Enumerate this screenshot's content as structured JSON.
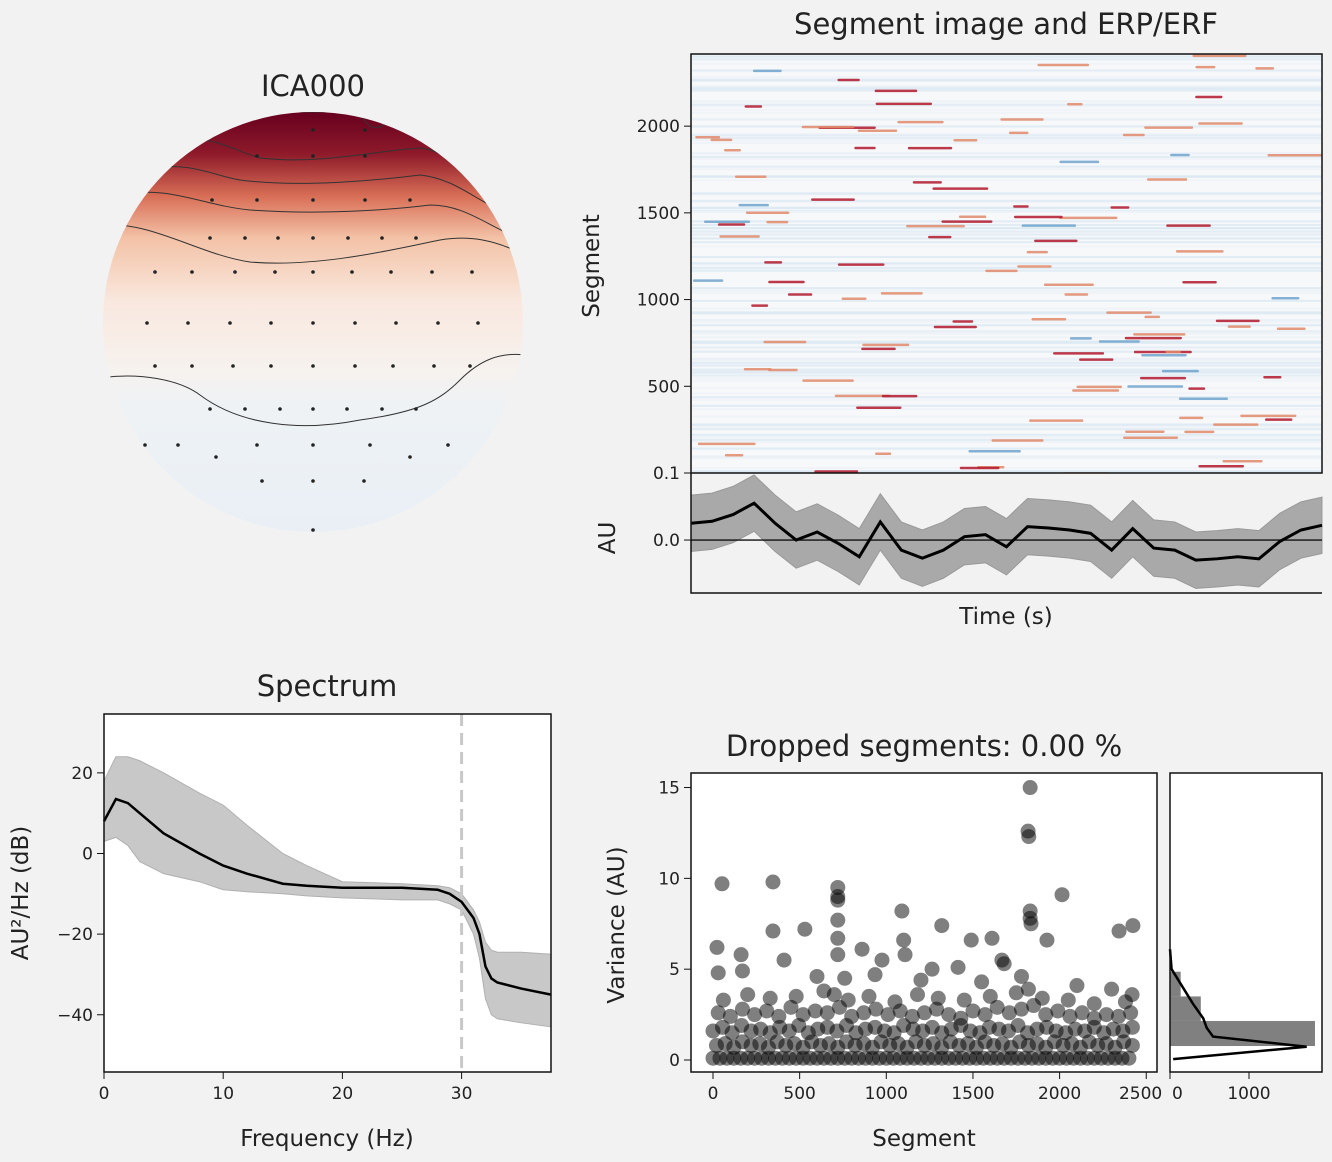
{
  "colors": {
    "background": "#f2f2f2",
    "topo_max": "#67001f",
    "topo_min": "#eef3f8",
    "band": "#a9a9a9",
    "spectrum_band": "#c8c8c8",
    "points": "#000000",
    "hist": "#808080"
  },
  "chart_data": [
    {
      "type": "heatmap",
      "id": "topomap",
      "title": "ICA000",
      "colormap": "RdBu_r",
      "contours": true,
      "sensors_shown": true
    },
    {
      "type": "heatmap",
      "id": "segment_image",
      "title": "Segment image and ERP/ERF",
      "ylabel": "Segment",
      "yticks": [
        "500",
        "1000",
        "1500",
        "2000"
      ],
      "ylim": [
        0,
        2416
      ],
      "colormap": "RdBu_r"
    },
    {
      "type": "line",
      "id": "erp",
      "xlabel": "Time (s)",
      "ylabel": "AU",
      "yticks": [
        "0.0",
        "0.1"
      ],
      "ylim": [
        -0.079,
        0.1
      ],
      "mean": [
        0.025,
        0.028,
        0.038,
        0.055,
        0.025,
        0.0,
        0.012,
        -0.005,
        -0.025,
        0.027,
        -0.015,
        -0.027,
        -0.015,
        0.005,
        0.008,
        -0.01,
        0.02,
        0.018,
        0.015,
        0.01,
        -0.015,
        0.017,
        -0.012,
        -0.015,
        -0.03,
        -0.028,
        -0.025,
        -0.028,
        -0.002,
        0.015,
        0.022
      ],
      "ci_halfwidth": 0.042,
      "hline": 0.0
    },
    {
      "type": "line",
      "id": "spectrum",
      "title": "Spectrum",
      "xlabel": "Frequency (Hz)",
      "ylabel": "AU²/Hz (dB)",
      "xticks": [
        "0",
        "10",
        "20",
        "30"
      ],
      "yticks": [
        "20",
        "0",
        "−20",
        "−40"
      ],
      "xlim": [
        0,
        37.5
      ],
      "ylim": [
        -54.2,
        34.6
      ],
      "x": [
        0,
        1,
        2,
        3,
        5,
        8,
        10,
        12,
        15,
        17,
        20,
        25,
        28,
        29,
        30,
        31,
        31.5,
        32,
        32.5,
        33,
        35,
        37.5
      ],
      "mean": [
        8,
        13.5,
        12.5,
        10,
        5,
        0,
        -3,
        -5,
        -7.5,
        -8,
        -8.5,
        -8.5,
        -9,
        -10,
        -12,
        -16,
        -20,
        -28,
        -31,
        -32,
        -33.5,
        -35
      ],
      "upper": [
        18,
        24,
        24,
        23,
        20,
        15,
        12,
        7,
        0,
        -3,
        -7,
        -7.5,
        -8,
        -8.5,
        -10,
        -14,
        -17,
        -22,
        -24,
        -24.5,
        -24.5,
        -25
      ],
      "lower": [
        3,
        4,
        2,
        -2,
        -5,
        -7,
        -9,
        -9.5,
        -10,
        -10.5,
        -11,
        -11.5,
        -11.5,
        -12.5,
        -14,
        -20,
        -26,
        -36,
        -40,
        -41,
        -42,
        -43
      ],
      "vline": 30
    },
    {
      "type": "scatter",
      "id": "dropped",
      "title": "Dropped segments: 0.00 %",
      "xlabel": "Segment",
      "ylabel": "Variance (AU)",
      "xticks": [
        "0",
        "500",
        "1000",
        "1500",
        "2000",
        "2500"
      ],
      "yticks": [
        "0",
        "5",
        "10",
        "15"
      ],
      "xlim": [
        -127,
        2562
      ],
      "ylim": [
        -0.66,
        15.8
      ],
      "points": [
        [
          52,
          9.7
        ],
        [
          23,
          6.2
        ],
        [
          162,
          5.8
        ],
        [
          346,
          9.8
        ],
        [
          346,
          7.1
        ],
        [
          720,
          9.5
        ],
        [
          720,
          9.0
        ],
        [
          720,
          8.8
        ],
        [
          720,
          7.7
        ],
        [
          720,
          6.7
        ],
        [
          720,
          5.8
        ],
        [
          530,
          7.2
        ],
        [
          1090,
          8.2
        ],
        [
          1100,
          6.6
        ],
        [
          1108,
          5.8
        ],
        [
          1320,
          7.4
        ],
        [
          1490,
          6.6
        ],
        [
          1610,
          6.7
        ],
        [
          1667,
          5.5
        ],
        [
          1830,
          15.0
        ],
        [
          1818,
          12.6
        ],
        [
          1822,
          12.3
        ],
        [
          1830,
          8.2
        ],
        [
          1830,
          7.8
        ],
        [
          1835,
          7.5
        ],
        [
          1927,
          6.6
        ],
        [
          2014,
          9.1
        ],
        [
          2343,
          7.1
        ],
        [
          2423,
          7.4
        ],
        [
          2418,
          3.6
        ],
        [
          410,
          5.5
        ],
        [
          860,
          6.1
        ],
        [
          975,
          5.5
        ],
        [
          1264,
          5.0
        ],
        [
          1414,
          5.1
        ],
        [
          1680,
          5.3
        ],
        [
          935,
          4.7
        ],
        [
          30,
          4.8
        ],
        [
          170,
          4.9
        ],
        [
          600,
          4.6
        ],
        [
          760,
          4.5
        ],
        [
          1200,
          4.4
        ],
        [
          1550,
          4.3
        ],
        [
          1780,
          4.6
        ],
        [
          2100,
          4.1
        ],
        [
          2300,
          3.9
        ],
        [
          0,
          0.1
        ],
        [
          40,
          0.1
        ],
        [
          80,
          0.1
        ],
        [
          120,
          0.1
        ],
        [
          160,
          0.1
        ],
        [
          200,
          0.1
        ],
        [
          240,
          0.1
        ],
        [
          280,
          0.1
        ],
        [
          320,
          0.1
        ],
        [
          360,
          0.1
        ],
        [
          400,
          0.1
        ],
        [
          440,
          0.1
        ],
        [
          480,
          0.1
        ],
        [
          520,
          0.1
        ],
        [
          560,
          0.1
        ],
        [
          600,
          0.1
        ],
        [
          640,
          0.1
        ],
        [
          680,
          0.1
        ],
        [
          720,
          0.1
        ],
        [
          760,
          0.1
        ],
        [
          800,
          0.1
        ],
        [
          840,
          0.1
        ],
        [
          880,
          0.1
        ],
        [
          920,
          0.1
        ],
        [
          960,
          0.1
        ],
        [
          1000,
          0.1
        ],
        [
          1040,
          0.1
        ],
        [
          1080,
          0.1
        ],
        [
          1120,
          0.1
        ],
        [
          1160,
          0.1
        ],
        [
          1200,
          0.1
        ],
        [
          1240,
          0.1
        ],
        [
          1280,
          0.1
        ],
        [
          1320,
          0.1
        ],
        [
          1360,
          0.1
        ],
        [
          1400,
          0.1
        ],
        [
          1440,
          0.1
        ],
        [
          1480,
          0.1
        ],
        [
          1520,
          0.1
        ],
        [
          1560,
          0.1
        ],
        [
          1600,
          0.1
        ],
        [
          1640,
          0.1
        ],
        [
          1680,
          0.1
        ],
        [
          1720,
          0.1
        ],
        [
          1760,
          0.1
        ],
        [
          1800,
          0.1
        ],
        [
          1840,
          0.1
        ],
        [
          1880,
          0.1
        ],
        [
          1920,
          0.1
        ],
        [
          1960,
          0.1
        ],
        [
          2000,
          0.1
        ],
        [
          2040,
          0.1
        ],
        [
          2080,
          0.1
        ],
        [
          2120,
          0.1
        ],
        [
          2160,
          0.1
        ],
        [
          2200,
          0.1
        ],
        [
          2240,
          0.1
        ],
        [
          2280,
          0.1
        ],
        [
          2320,
          0.1
        ],
        [
          2360,
          0.1
        ],
        [
          2400,
          0.1
        ],
        [
          20,
          0.8
        ],
        [
          70,
          0.9
        ],
        [
          120,
          0.7
        ],
        [
          170,
          1.0
        ],
        [
          220,
          0.8
        ],
        [
          270,
          0.9
        ],
        [
          320,
          0.7
        ],
        [
          370,
          1.0
        ],
        [
          420,
          0.8
        ],
        [
          470,
          0.9
        ],
        [
          520,
          0.7
        ],
        [
          570,
          1.0
        ],
        [
          620,
          0.8
        ],
        [
          670,
          0.9
        ],
        [
          720,
          0.7
        ],
        [
          770,
          1.0
        ],
        [
          820,
          0.8
        ],
        [
          870,
          0.9
        ],
        [
          920,
          0.7
        ],
        [
          970,
          1.0
        ],
        [
          1020,
          0.8
        ],
        [
          1070,
          0.9
        ],
        [
          1120,
          0.7
        ],
        [
          1170,
          1.0
        ],
        [
          1220,
          0.8
        ],
        [
          1270,
          0.9
        ],
        [
          1320,
          0.7
        ],
        [
          1370,
          1.0
        ],
        [
          1420,
          0.8
        ],
        [
          1470,
          0.9
        ],
        [
          1520,
          0.7
        ],
        [
          1570,
          1.0
        ],
        [
          1620,
          0.8
        ],
        [
          1670,
          0.9
        ],
        [
          1720,
          0.7
        ],
        [
          1770,
          1.0
        ],
        [
          1820,
          0.8
        ],
        [
          1870,
          0.9
        ],
        [
          1920,
          0.7
        ],
        [
          1970,
          1.0
        ],
        [
          2020,
          0.8
        ],
        [
          2070,
          0.9
        ],
        [
          2120,
          0.7
        ],
        [
          2170,
          1.0
        ],
        [
          2220,
          0.8
        ],
        [
          2270,
          0.9
        ],
        [
          2320,
          0.7
        ],
        [
          2370,
          1.0
        ],
        [
          2420,
          0.8
        ],
        [
          0,
          1.6
        ],
        [
          55,
          1.8
        ],
        [
          110,
          1.5
        ],
        [
          165,
          1.9
        ],
        [
          220,
          1.6
        ],
        [
          275,
          1.7
        ],
        [
          330,
          1.5
        ],
        [
          385,
          1.8
        ],
        [
          440,
          1.6
        ],
        [
          495,
          1.9
        ],
        [
          550,
          1.5
        ],
        [
          605,
          1.7
        ],
        [
          660,
          1.8
        ],
        [
          715,
          1.6
        ],
        [
          770,
          1.9
        ],
        [
          825,
          1.5
        ],
        [
          880,
          1.7
        ],
        [
          935,
          1.8
        ],
        [
          990,
          1.6
        ],
        [
          1045,
          1.5
        ],
        [
          1100,
          1.9
        ],
        [
          1155,
          1.7
        ],
        [
          1210,
          1.6
        ],
        [
          1265,
          1.8
        ],
        [
          1320,
          1.5
        ],
        [
          1375,
          1.7
        ],
        [
          1430,
          1.9
        ],
        [
          1485,
          1.6
        ],
        [
          1540,
          1.5
        ],
        [
          1595,
          1.8
        ],
        [
          1650,
          1.7
        ],
        [
          1705,
          1.6
        ],
        [
          1760,
          1.9
        ],
        [
          1815,
          1.5
        ],
        [
          1870,
          1.7
        ],
        [
          1925,
          1.8
        ],
        [
          1980,
          1.6
        ],
        [
          2035,
          1.5
        ],
        [
          2090,
          1.7
        ],
        [
          2145,
          1.6
        ],
        [
          2200,
          1.8
        ],
        [
          2255,
          1.5
        ],
        [
          2310,
          1.7
        ],
        [
          2365,
          1.6
        ],
        [
          2420,
          1.8
        ],
        [
          30,
          2.6
        ],
        [
          100,
          2.4
        ],
        [
          170,
          2.8
        ],
        [
          240,
          2.5
        ],
        [
          310,
          2.7
        ],
        [
          380,
          2.4
        ],
        [
          450,
          2.9
        ],
        [
          520,
          2.5
        ],
        [
          590,
          2.7
        ],
        [
          660,
          2.6
        ],
        [
          730,
          2.9
        ],
        [
          800,
          2.4
        ],
        [
          870,
          2.6
        ],
        [
          940,
          2.8
        ],
        [
          1010,
          2.5
        ],
        [
          1080,
          2.7
        ],
        [
          1150,
          2.4
        ],
        [
          1220,
          2.6
        ],
        [
          1290,
          2.8
        ],
        [
          1360,
          2.5
        ],
        [
          1430,
          2.3
        ],
        [
          1500,
          2.7
        ],
        [
          1570,
          2.5
        ],
        [
          1640,
          2.9
        ],
        [
          1710,
          2.6
        ],
        [
          1780,
          2.8
        ],
        [
          1850,
          3.0
        ],
        [
          1920,
          2.5
        ],
        [
          1990,
          2.7
        ],
        [
          2060,
          2.4
        ],
        [
          2130,
          2.6
        ],
        [
          2200,
          2.3
        ],
        [
          2270,
          2.5
        ],
        [
          2340,
          2.4
        ],
        [
          2410,
          2.6
        ],
        [
          60,
          3.3
        ],
        [
          200,
          3.6
        ],
        [
          330,
          3.4
        ],
        [
          480,
          3.5
        ],
        [
          640,
          3.8
        ],
        [
          700,
          3.6
        ],
        [
          780,
          3.3
        ],
        [
          900,
          3.5
        ],
        [
          1050,
          3.2
        ],
        [
          1180,
          3.6
        ],
        [
          1300,
          3.4
        ],
        [
          1450,
          3.3
        ],
        [
          1600,
          3.5
        ],
        [
          1750,
          3.7
        ],
        [
          1820,
          3.9
        ],
        [
          1900,
          3.4
        ],
        [
          2050,
          3.3
        ],
        [
          2200,
          3.1
        ],
        [
          2380,
          3.2
        ]
      ]
    },
    {
      "type": "bar",
      "id": "variance_hist",
      "orientation": "horizontal",
      "xticks": [
        "0",
        "1000"
      ],
      "xlim": [
        0,
        1924
      ],
      "bins": [
        [
          0.77,
          2.15
        ],
        [
          2.15,
          3.5
        ],
        [
          3.5,
          4.86
        ]
      ],
      "counts": [
        1835,
        390,
        135
      ],
      "kde_variance": [
        0.05,
        0.73,
        1.29,
        1.77,
        2.3,
        3.1,
        4.25,
        5.0,
        6.1
      ],
      "kde_count": [
        40,
        1730,
        545,
        465,
        420,
        290,
        127,
        20,
        0
      ]
    }
  ]
}
